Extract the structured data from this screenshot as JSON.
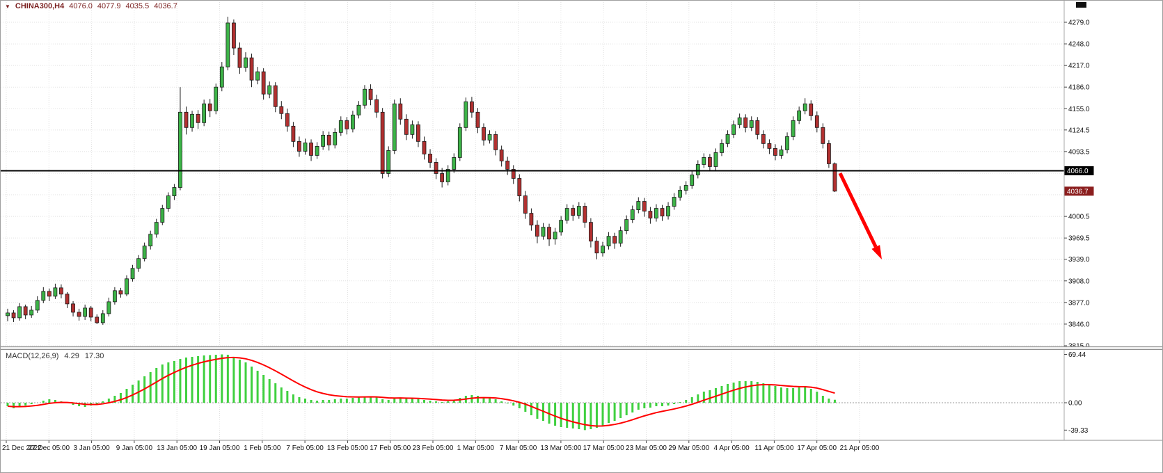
{
  "header": {
    "expand_icon": "▼",
    "symbol": "CHINA300,H4",
    "open": "4076.0",
    "high": "4077.9",
    "low": "4035.5",
    "close": "4036.7"
  },
  "macd_label": {
    "title": "MACD(12,26,9)",
    "main": "4.29",
    "signal": "17.30"
  },
  "colors": {
    "background": "#ffffff",
    "grid": "#e1e1e1",
    "axis_text": "#111111",
    "axis_line": "#a8a8a8",
    "time_text": "#111111",
    "wick": "#1a1a1a",
    "hline": "#000000",
    "hline_label_bg": "#000000",
    "last_price_bg": "#8b1e1e",
    "label_text": "#ffffff"
  },
  "annotation": {
    "type": "arrow",
    "color": "#ff0000",
    "from": [
      1206,
      248
    ],
    "to": [
      1266,
      372
    ]
  },
  "chart_data": [
    {
      "type": "candlestick",
      "title": "CHINA300,H4",
      "ylabel": "price",
      "ylim": [
        3815,
        4290
      ],
      "up_color": "#3cb347",
      "down_color": "#b13030",
      "hline": 4066.0,
      "last_price": 4036.7,
      "y_ticks": [
        4279.0,
        4248.0,
        4217.0,
        4186.0,
        4155.0,
        4124.5,
        4093.5,
        4000.5,
        3969.5,
        3939.0,
        3908.0,
        3877.0,
        3846.0,
        3815.0
      ],
      "y_grid_extra": [
        4062.5,
        4031.5
      ],
      "x_labels": [
        "21 Dec 2022",
        "27 Dec 05:00",
        "3 Jan 05:00",
        "9 Jan 05:00",
        "13 Jan 05:00",
        "19 Jan 05:00",
        "1 Feb 05:00",
        "7 Feb 05:00",
        "13 Feb 05:00",
        "17 Feb 05:00",
        "23 Feb 05:00",
        "1 Mar 05:00",
        "7 Mar 05:00",
        "13 Mar 05:00",
        "17 Mar 05:00",
        "23 Mar 05:00",
        "29 Mar 05:00",
        "4 Apr 05:00",
        "11 Apr 05:00",
        "17 Apr 05:00",
        "21 Apr 05:00"
      ],
      "ohlc": [
        [
          3858,
          3868,
          3850,
          3862
        ],
        [
          3862,
          3866,
          3849,
          3855
        ],
        [
          3855,
          3876,
          3851,
          3871
        ],
        [
          3871,
          3874,
          3853,
          3859
        ],
        [
          3859,
          3872,
          3855,
          3866
        ],
        [
          3866,
          3886,
          3862,
          3880
        ],
        [
          3880,
          3899,
          3876,
          3893
        ],
        [
          3893,
          3897,
          3879,
          3886
        ],
        [
          3886,
          3904,
          3882,
          3898
        ],
        [
          3898,
          3903,
          3883,
          3889
        ],
        [
          3889,
          3892,
          3869,
          3875
        ],
        [
          3875,
          3879,
          3857,
          3863
        ],
        [
          3863,
          3868,
          3851,
          3857
        ],
        [
          3857,
          3874,
          3852,
          3869
        ],
        [
          3869,
          3872,
          3850,
          3856
        ],
        [
          3856,
          3860,
          3846,
          3848
        ],
        [
          3848,
          3866,
          3845,
          3861
        ],
        [
          3861,
          3884,
          3857,
          3878
        ],
        [
          3878,
          3899,
          3874,
          3894
        ],
        [
          3894,
          3898,
          3884,
          3889
        ],
        [
          3889,
          3916,
          3886,
          3911
        ],
        [
          3911,
          3931,
          3907,
          3926
        ],
        [
          3926,
          3945,
          3921,
          3940
        ],
        [
          3940,
          3963,
          3936,
          3958
        ],
        [
          3958,
          3980,
          3953,
          3975
        ],
        [
          3975,
          3997,
          3970,
          3992
        ],
        [
          3992,
          4017,
          3988,
          4012
        ],
        [
          4012,
          4035,
          4007,
          4030
        ],
        [
          4030,
          4047,
          4024,
          4042
        ],
        [
          4042,
          4186,
          4038,
          4150
        ],
        [
          4150,
          4158,
          4118,
          4128
        ],
        [
          4128,
          4152,
          4122,
          4147
        ],
        [
          4147,
          4153,
          4126,
          4135
        ],
        [
          4135,
          4168,
          4130,
          4162
        ],
        [
          4162,
          4169,
          4143,
          4152
        ],
        [
          4152,
          4191,
          4147,
          4186
        ],
        [
          4186,
          4222,
          4180,
          4215
        ],
        [
          4215,
          4287,
          4210,
          4278
        ],
        [
          4278,
          4283,
          4232,
          4242
        ],
        [
          4242,
          4250,
          4205,
          4214
        ],
        [
          4214,
          4236,
          4208,
          4228
        ],
        [
          4228,
          4234,
          4186,
          4196
        ],
        [
          4196,
          4215,
          4190,
          4208
        ],
        [
          4208,
          4213,
          4168,
          4176
        ],
        [
          4176,
          4194,
          4170,
          4188
        ],
        [
          4188,
          4193,
          4150,
          4158
        ],
        [
          4158,
          4166,
          4140,
          4148
        ],
        [
          4148,
          4155,
          4122,
          4130
        ],
        [
          4130,
          4136,
          4100,
          4108
        ],
        [
          4108,
          4115,
          4086,
          4094
        ],
        [
          4094,
          4112,
          4089,
          4106
        ],
        [
          4106,
          4111,
          4080,
          4088
        ],
        [
          4088,
          4107,
          4083,
          4101
        ],
        [
          4101,
          4123,
          4096,
          4117
        ],
        [
          4117,
          4122,
          4095,
          4103
        ],
        [
          4103,
          4127,
          4098,
          4121
        ],
        [
          4121,
          4144,
          4116,
          4138
        ],
        [
          4138,
          4143,
          4118,
          4126
        ],
        [
          4126,
          4152,
          4121,
          4146
        ],
        [
          4146,
          4166,
          4141,
          4160
        ],
        [
          4160,
          4189,
          4155,
          4183
        ],
        [
          4183,
          4190,
          4160,
          4168
        ],
        [
          4168,
          4175,
          4142,
          4150
        ],
        [
          4150,
          4156,
          4055,
          4062
        ],
        [
          4062,
          4101,
          4057,
          4095
        ],
        [
          4095,
          4168,
          4090,
          4162
        ],
        [
          4162,
          4170,
          4132,
          4140
        ],
        [
          4140,
          4147,
          4110,
          4118
        ],
        [
          4118,
          4138,
          4112,
          4132
        ],
        [
          4132,
          4137,
          4100,
          4108
        ],
        [
          4108,
          4115,
          4082,
          4090
        ],
        [
          4090,
          4097,
          4070,
          4078
        ],
        [
          4078,
          4084,
          4054,
          4062
        ],
        [
          4062,
          4070,
          4042,
          4050
        ],
        [
          4050,
          4074,
          4045,
          4068
        ],
        [
          4068,
          4091,
          4063,
          4085
        ],
        [
          4085,
          4134,
          4080,
          4128
        ],
        [
          4128,
          4171,
          4123,
          4165
        ],
        [
          4165,
          4172,
          4142,
          4150
        ],
        [
          4150,
          4156,
          4120,
          4128
        ],
        [
          4128,
          4134,
          4102,
          4110
        ],
        [
          4110,
          4124,
          4105,
          4118
        ],
        [
          4118,
          4123,
          4088,
          4096
        ],
        [
          4096,
          4102,
          4072,
          4080
        ],
        [
          4080,
          4086,
          4060,
          4068
        ],
        [
          4068,
          4074,
          4047,
          4055
        ],
        [
          4055,
          4061,
          4022,
          4030
        ],
        [
          4030,
          4037,
          3997,
          4005
        ],
        [
          4005,
          4012,
          3980,
          3988
        ],
        [
          3988,
          3995,
          3962,
          3972
        ],
        [
          3972,
          3991,
          3967,
          3985
        ],
        [
          3985,
          3990,
          3958,
          3968
        ],
        [
          3968,
          3984,
          3960,
          3978
        ],
        [
          3978,
          4001,
          3973,
          3995
        ],
        [
          3995,
          4018,
          3990,
          4012
        ],
        [
          4012,
          4017,
          3994,
          4002
        ],
        [
          4002,
          4021,
          3997,
          4015
        ],
        [
          4015,
          4020,
          3984,
          3992
        ],
        [
          3992,
          3998,
          3956,
          3965
        ],
        [
          3965,
          3971,
          3939,
          3948
        ],
        [
          3948,
          3964,
          3943,
          3958
        ],
        [
          3958,
          3978,
          3953,
          3972
        ],
        [
          3972,
          3977,
          3954,
          3962
        ],
        [
          3962,
          3986,
          3957,
          3980
        ],
        [
          3980,
          4002,
          3975,
          3996
        ],
        [
          3996,
          4016,
          3991,
          4010
        ],
        [
          4010,
          4028,
          4005,
          4022
        ],
        [
          4022,
          4027,
          4000,
          4008
        ],
        [
          4008,
          4014,
          3990,
          3998
        ],
        [
          3998,
          4018,
          3993,
          4012
        ],
        [
          4012,
          4017,
          3994,
          4001
        ],
        [
          4001,
          4021,
          3996,
          4015
        ],
        [
          4015,
          4034,
          4010,
          4028
        ],
        [
          4028,
          4044,
          4023,
          4038
        ],
        [
          4038,
          4051,
          4032,
          4045
        ],
        [
          4045,
          4066,
          4040,
          4060
        ],
        [
          4060,
          4081,
          4055,
          4075
        ],
        [
          4075,
          4091,
          4070,
          4085
        ],
        [
          4085,
          4090,
          4065,
          4072
        ],
        [
          4072,
          4098,
          4067,
          4092
        ],
        [
          4092,
          4111,
          4087,
          4105
        ],
        [
          4105,
          4124,
          4100,
          4118
        ],
        [
          4118,
          4138,
          4113,
          4132
        ],
        [
          4132,
          4148,
          4127,
          4142
        ],
        [
          4142,
          4147,
          4121,
          4128
        ],
        [
          4128,
          4144,
          4123,
          4138
        ],
        [
          4138,
          4143,
          4111,
          4118
        ],
        [
          4118,
          4124,
          4098,
          4105
        ],
        [
          4105,
          4111,
          4090,
          4098
        ],
        [
          4098,
          4104,
          4081,
          4088
        ],
        [
          4088,
          4102,
          4083,
          4096
        ],
        [
          4096,
          4121,
          4091,
          4115
        ],
        [
          4115,
          4144,
          4110,
          4138
        ],
        [
          4138,
          4158,
          4133,
          4152
        ],
        [
          4152,
          4170,
          4147,
          4162
        ],
        [
          4162,
          4167,
          4138,
          4145
        ],
        [
          4145,
          4151,
          4121,
          4128
        ],
        [
          4128,
          4134,
          4098,
          4105
        ],
        [
          4105,
          4110,
          4070,
          4076
        ],
        [
          4076,
          4077.9,
          4035.5,
          4036.7
        ]
      ]
    },
    {
      "type": "macd",
      "title": "MACD(12,26,9)",
      "main_value": 4.29,
      "signal_value": 17.3,
      "histogram_color": "#3fd03f",
      "signal_color": "#ff0000",
      "y_ticks": [
        69.44,
        0,
        -39.33
      ],
      "macd": [
        -5,
        -8,
        -6,
        -4,
        -2,
        0,
        3,
        5,
        4,
        2,
        0,
        -3,
        -5,
        -6,
        -4,
        -2,
        2,
        6,
        10,
        14,
        20,
        26,
        32,
        38,
        44,
        50,
        55,
        58,
        60,
        63,
        65,
        66,
        67,
        68,
        68.5,
        69,
        69.44,
        69,
        66,
        62,
        58,
        52,
        46,
        40,
        34,
        28,
        22,
        17,
        12,
        8,
        6,
        4,
        3,
        4,
        4,
        5,
        6,
        6,
        7,
        8,
        9,
        9,
        8,
        5,
        4,
        6,
        7,
        6,
        6,
        5,
        4,
        3,
        2,
        1,
        2,
        4,
        7,
        10,
        11,
        10,
        8,
        7,
        5,
        2,
        -1,
        -4,
        -8,
        -13,
        -18,
        -23,
        -26,
        -30,
        -33,
        -35,
        -36,
        -37,
        -38,
        -39.33,
        -38,
        -36,
        -33,
        -29,
        -26,
        -22,
        -18,
        -14,
        -10,
        -8,
        -7,
        -5,
        -5,
        -4,
        -2,
        1,
        4,
        8,
        12,
        16,
        18,
        21,
        24,
        27,
        29,
        31,
        31,
        31,
        30,
        28,
        26,
        24,
        22,
        21,
        21,
        22,
        22,
        20,
        16,
        10,
        6,
        4.29
      ]
    }
  ]
}
